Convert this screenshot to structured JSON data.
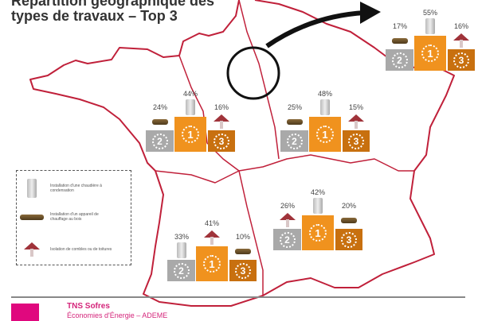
{
  "title": "Répartition géographique des types de travaux – Top 3",
  "colors": {
    "map_border": "#c0203a",
    "rank1": "#f0921e",
    "rank2": "#a9a9a9",
    "rank3": "#c8700f",
    "brand": "#e0087e"
  },
  "legend": [
    {
      "icon": "boiler-icon",
      "label": "Installation d'une chaudière à condensation"
    },
    {
      "icon": "wood-stove-icon",
      "label": "Installation d'un appareil de chauffage au bois"
    },
    {
      "icon": "roof-insulation-icon",
      "label": "Isolation de combles ou de toitures"
    }
  ],
  "regions": [
    {
      "name": "ile-de-france",
      "items": [
        {
          "rank": "2",
          "pct": "17%",
          "icon": "wood-stove-icon"
        },
        {
          "rank": "1",
          "pct": "55%",
          "icon": "boiler-icon"
        },
        {
          "rank": "3",
          "pct": "16%",
          "icon": "roof-insulation-icon"
        }
      ]
    },
    {
      "name": "north-west",
      "items": [
        {
          "rank": "2",
          "pct": "24%",
          "icon": "wood-stove-icon"
        },
        {
          "rank": "1",
          "pct": "44%",
          "icon": "boiler-icon"
        },
        {
          "rank": "3",
          "pct": "16%",
          "icon": "roof-insulation-icon"
        }
      ]
    },
    {
      "name": "north-east",
      "items": [
        {
          "rank": "2",
          "pct": "25%",
          "icon": "wood-stove-icon"
        },
        {
          "rank": "1",
          "pct": "48%",
          "icon": "boiler-icon"
        },
        {
          "rank": "3",
          "pct": "15%",
          "icon": "roof-insulation-icon"
        }
      ]
    },
    {
      "name": "south-east",
      "items": [
        {
          "rank": "2",
          "pct": "26%",
          "icon": "roof-insulation-icon"
        },
        {
          "rank": "1",
          "pct": "42%",
          "icon": "boiler-icon"
        },
        {
          "rank": "3",
          "pct": "20%",
          "icon": "wood-stove-icon"
        }
      ]
    },
    {
      "name": "south-west",
      "items": [
        {
          "rank": "2",
          "pct": "33%",
          "icon": "boiler-icon"
        },
        {
          "rank": "1",
          "pct": "41%",
          "icon": "roof-insulation-icon"
        },
        {
          "rank": "3",
          "pct": "10%",
          "icon": "wood-stove-icon"
        }
      ]
    }
  ],
  "footer": {
    "company": "TNS Sofres",
    "subtitle": "Économies d'Énergie – ADEME"
  }
}
